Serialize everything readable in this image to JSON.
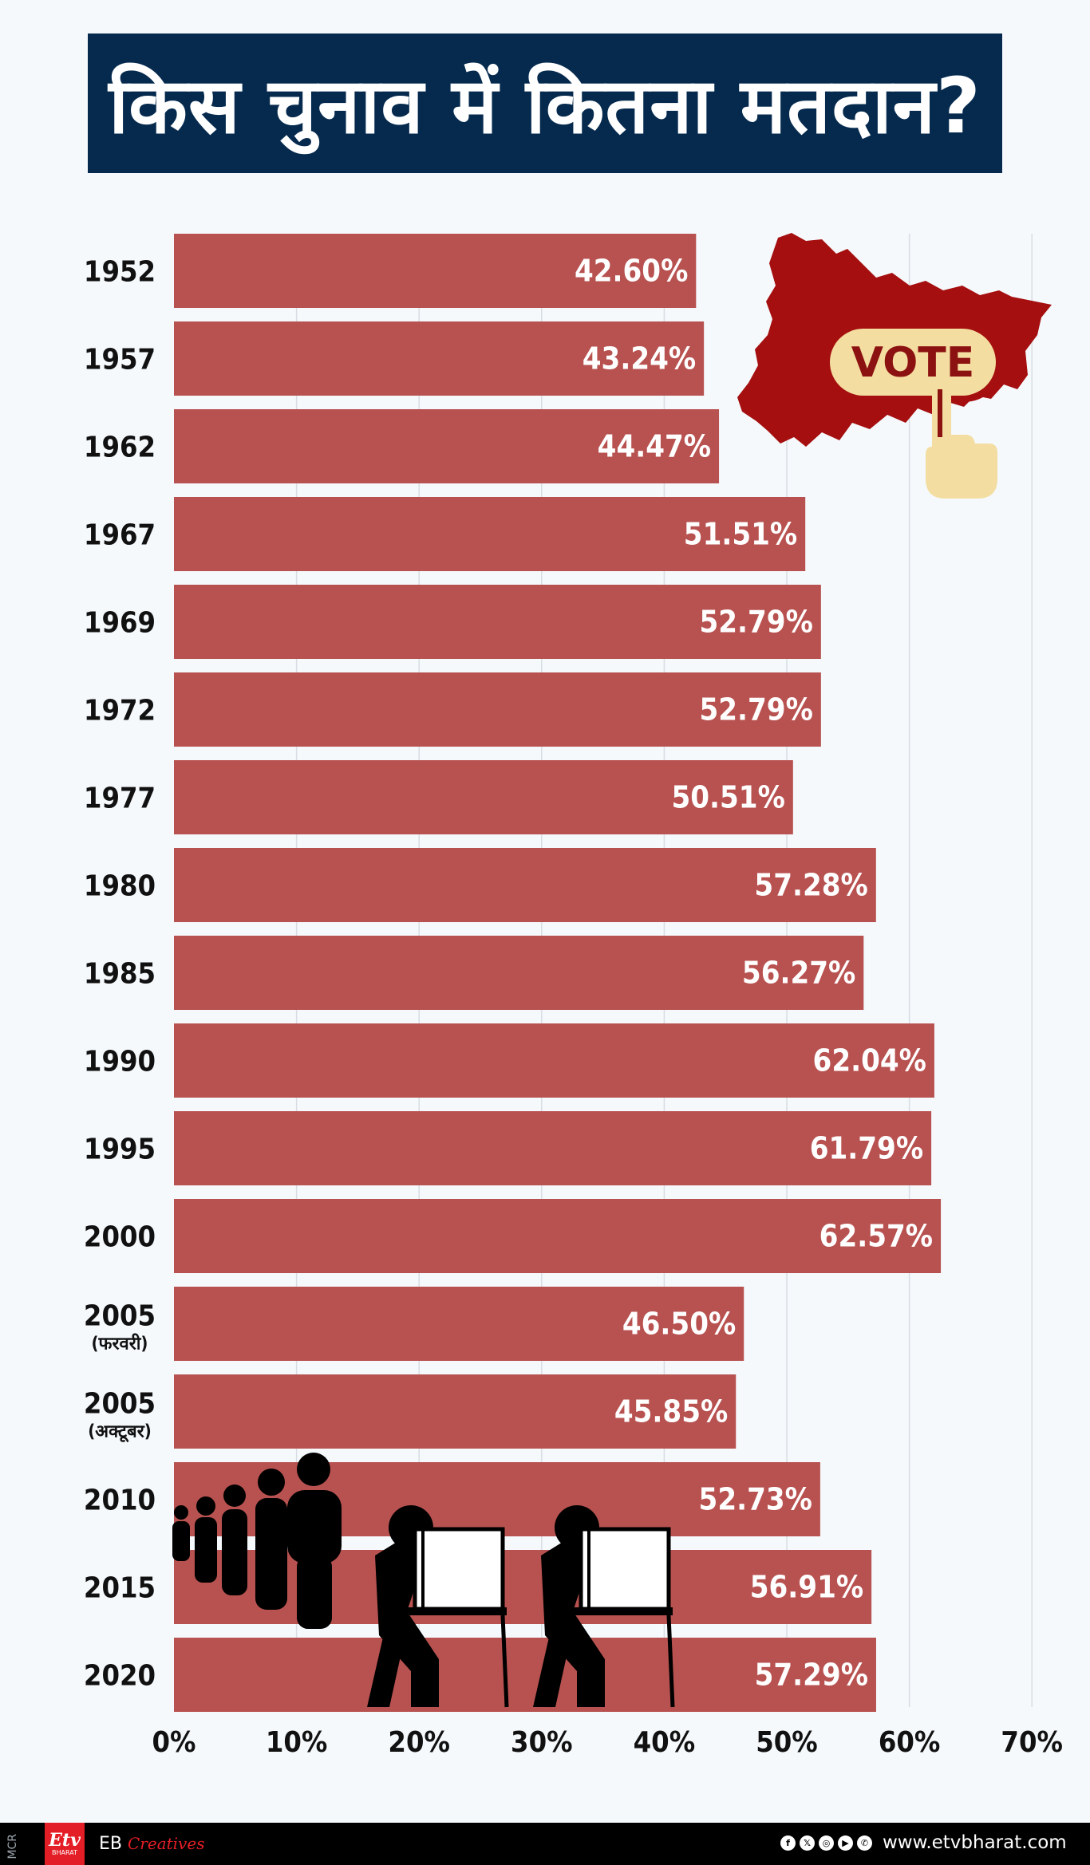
{
  "title": "किस चुनाव में कितना मतदान?",
  "chart_data": {
    "type": "bar",
    "orientation": "horizontal",
    "title": "किस चुनाव में कितना मतदान?",
    "categories": [
      "1952",
      "1957",
      "1962",
      "1967",
      "1969",
      "1972",
      "1977",
      "1980",
      "1985",
      "1990",
      "1995",
      "2000",
      "2005",
      "2005",
      "2010",
      "2015",
      "2020"
    ],
    "category_sublabels": [
      "",
      "",
      "",
      "",
      "",
      "",
      "",
      "",
      "",
      "",
      "",
      "",
      "(फरवरी)",
      "(अक्टूबर)",
      "",
      "",
      ""
    ],
    "values": [
      42.6,
      43.24,
      44.47,
      51.51,
      52.79,
      52.79,
      50.51,
      57.28,
      56.27,
      62.04,
      61.79,
      62.57,
      46.5,
      45.85,
      52.73,
      56.91,
      57.29
    ],
    "data_labels": [
      "42.60%",
      "43.24%",
      "44.47%",
      "51.51%",
      "52.79%",
      "52.79%",
      "50.51%",
      "57.28%",
      "56.27%",
      "62.04%",
      "61.79%",
      "62.57%",
      "46.50%",
      "45.85%",
      "52.73%",
      "56.91%",
      "57.29%"
    ],
    "x_ticks": [
      "0%",
      "10%",
      "20%",
      "30%",
      "40%",
      "50%",
      "60%",
      "70%"
    ],
    "xlim": [
      0,
      70
    ],
    "xlabel": "",
    "ylabel": "",
    "grid": true,
    "bar_color": "#b85250",
    "label_color": "#ffffff"
  },
  "illustration": {
    "vote_badge": "VOTE",
    "map_color": "#a50f0f",
    "badge_color": "#f3dda0"
  },
  "footer": {
    "mcr": "MCR",
    "logo_main": "Etv",
    "logo_sub": "BHARAT",
    "eb": "EB",
    "creatives": "Creatives",
    "social_icons": [
      "facebook-icon",
      "x-icon",
      "instagram-icon",
      "youtube-icon",
      "whatsapp-icon"
    ],
    "website": "www.etvbharat.com"
  }
}
